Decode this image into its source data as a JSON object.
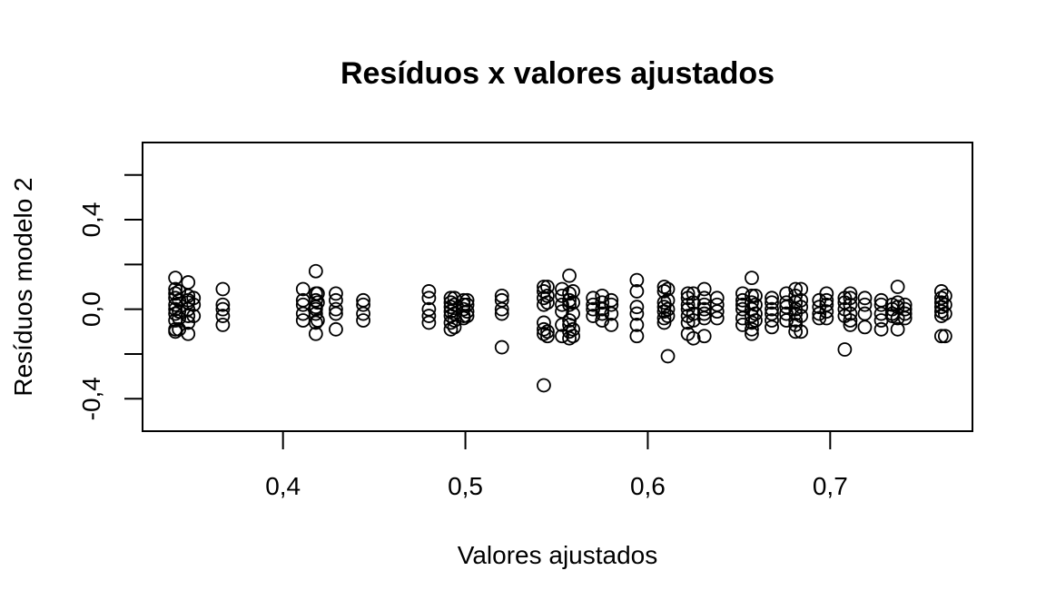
{
  "chart_data": {
    "type": "scatter",
    "title": "Resíduos x valores ajustados",
    "xlabel": "Valores ajustados",
    "ylabel": "Resíduos modelo 2",
    "xlim": [
      0.323,
      0.778
    ],
    "ylim": [
      -0.545,
      0.745
    ],
    "xticks": [
      {
        "value": 0.4,
        "label": "0,4"
      },
      {
        "value": 0.5,
        "label": "0,5"
      },
      {
        "value": 0.6,
        "label": "0,6"
      },
      {
        "value": 0.7,
        "label": "0,7"
      }
    ],
    "yticks": [
      {
        "value": -0.4,
        "label": "-0,4"
      },
      {
        "value": -0.2,
        "label": ""
      },
      {
        "value": 0.0,
        "label": "0,0"
      },
      {
        "value": 0.2,
        "label": ""
      },
      {
        "value": 0.4,
        "label": "0,4"
      },
      {
        "value": 0.6,
        "label": ""
      }
    ],
    "grid": false,
    "marker": "open-circle",
    "points": [
      [
        0.341,
        0.14
      ],
      [
        0.341,
        0.09
      ],
      [
        0.341,
        0.07
      ],
      [
        0.341,
        0.05
      ],
      [
        0.341,
        0.02
      ],
      [
        0.341,
        0.0
      ],
      [
        0.341,
        -0.02
      ],
      [
        0.341,
        -0.05
      ],
      [
        0.341,
        -0.09
      ],
      [
        0.341,
        -0.1
      ],
      [
        0.343,
        0.08
      ],
      [
        0.343,
        0.04
      ],
      [
        0.343,
        -0.01
      ],
      [
        0.343,
        -0.04
      ],
      [
        0.343,
        -0.09
      ],
      [
        0.348,
        0.12
      ],
      [
        0.348,
        0.06
      ],
      [
        0.348,
        0.04
      ],
      [
        0.348,
        0.03
      ],
      [
        0.348,
        0.0
      ],
      [
        0.348,
        -0.03
      ],
      [
        0.348,
        -0.06
      ],
      [
        0.348,
        -0.11
      ],
      [
        0.351,
        0.05
      ],
      [
        0.351,
        0.02
      ],
      [
        0.351,
        -0.03
      ],
      [
        0.367,
        0.09
      ],
      [
        0.367,
        0.02
      ],
      [
        0.367,
        0.0
      ],
      [
        0.367,
        -0.03
      ],
      [
        0.367,
        -0.07
      ],
      [
        0.411,
        0.09
      ],
      [
        0.411,
        0.04
      ],
      [
        0.411,
        0.02
      ],
      [
        0.411,
        -0.02
      ],
      [
        0.411,
        -0.05
      ],
      [
        0.418,
        0.17
      ],
      [
        0.418,
        0.07
      ],
      [
        0.418,
        0.04
      ],
      [
        0.418,
        0.01
      ],
      [
        0.418,
        0.0
      ],
      [
        0.418,
        -0.02
      ],
      [
        0.418,
        -0.06
      ],
      [
        0.418,
        -0.11
      ],
      [
        0.419,
        0.07
      ],
      [
        0.419,
        0.03
      ],
      [
        0.419,
        -0.05
      ],
      [
        0.429,
        0.07
      ],
      [
        0.429,
        0.04
      ],
      [
        0.429,
        0.0
      ],
      [
        0.429,
        -0.02
      ],
      [
        0.429,
        -0.09
      ],
      [
        0.444,
        0.04
      ],
      [
        0.444,
        0.02
      ],
      [
        0.444,
        -0.02
      ],
      [
        0.444,
        -0.05
      ],
      [
        0.48,
        0.08
      ],
      [
        0.48,
        0.05
      ],
      [
        0.48,
        0.0
      ],
      [
        0.48,
        -0.03
      ],
      [
        0.48,
        -0.06
      ],
      [
        0.492,
        0.05
      ],
      [
        0.492,
        0.03
      ],
      [
        0.492,
        0.01
      ],
      [
        0.492,
        -0.01
      ],
      [
        0.492,
        -0.03
      ],
      [
        0.492,
        -0.06
      ],
      [
        0.492,
        -0.09
      ],
      [
        0.494,
        0.05
      ],
      [
        0.494,
        0.02
      ],
      [
        0.494,
        -0.02
      ],
      [
        0.494,
        -0.05
      ],
      [
        0.494,
        -0.08
      ],
      [
        0.499,
        0.04
      ],
      [
        0.499,
        0.02
      ],
      [
        0.499,
        0.0
      ],
      [
        0.499,
        -0.03
      ],
      [
        0.499,
        -0.04
      ],
      [
        0.501,
        0.04
      ],
      [
        0.501,
        0.02
      ],
      [
        0.501,
        -0.01
      ],
      [
        0.501,
        -0.03
      ],
      [
        0.52,
        0.06
      ],
      [
        0.52,
        0.04
      ],
      [
        0.52,
        0.0
      ],
      [
        0.52,
        -0.02
      ],
      [
        0.52,
        -0.17
      ],
      [
        0.543,
        0.1
      ],
      [
        0.543,
        0.08
      ],
      [
        0.543,
        0.05
      ],
      [
        0.543,
        0.02
      ],
      [
        0.543,
        -0.06
      ],
      [
        0.543,
        -0.09
      ],
      [
        0.543,
        -0.11
      ],
      [
        0.543,
        -0.34
      ],
      [
        0.545,
        0.1
      ],
      [
        0.545,
        0.06
      ],
      [
        0.545,
        0.03
      ],
      [
        0.545,
        -0.1
      ],
      [
        0.545,
        -0.12
      ],
      [
        0.553,
        0.09
      ],
      [
        0.553,
        0.06
      ],
      [
        0.553,
        0.02
      ],
      [
        0.553,
        -0.01
      ],
      [
        0.553,
        -0.07
      ],
      [
        0.553,
        -0.12
      ],
      [
        0.557,
        0.15
      ],
      [
        0.557,
        0.07
      ],
      [
        0.557,
        0.04
      ],
      [
        0.557,
        0.02
      ],
      [
        0.557,
        -0.05
      ],
      [
        0.557,
        -0.07
      ],
      [
        0.557,
        -0.1
      ],
      [
        0.557,
        -0.13
      ],
      [
        0.559,
        0.08
      ],
      [
        0.559,
        0.03
      ],
      [
        0.559,
        -0.02
      ],
      [
        0.559,
        -0.09
      ],
      [
        0.559,
        -0.12
      ],
      [
        0.57,
        0.05
      ],
      [
        0.57,
        0.02
      ],
      [
        0.57,
        0.0
      ],
      [
        0.57,
        -0.03
      ],
      [
        0.575,
        0.06
      ],
      [
        0.575,
        0.03
      ],
      [
        0.575,
        0.0
      ],
      [
        0.575,
        -0.02
      ],
      [
        0.575,
        -0.05
      ],
      [
        0.58,
        0.04
      ],
      [
        0.58,
        0.02
      ],
      [
        0.58,
        -0.02
      ],
      [
        0.58,
        -0.07
      ],
      [
        0.594,
        0.13
      ],
      [
        0.594,
        0.08
      ],
      [
        0.594,
        0.01
      ],
      [
        0.594,
        -0.02
      ],
      [
        0.594,
        -0.07
      ],
      [
        0.594,
        -0.12
      ],
      [
        0.609,
        0.1
      ],
      [
        0.609,
        0.08
      ],
      [
        0.609,
        0.03
      ],
      [
        0.609,
        0.01
      ],
      [
        0.609,
        -0.01
      ],
      [
        0.609,
        -0.04
      ],
      [
        0.609,
        -0.06
      ],
      [
        0.611,
        0.09
      ],
      [
        0.611,
        0.04
      ],
      [
        0.611,
        0.0
      ],
      [
        0.611,
        -0.03
      ],
      [
        0.611,
        -0.21
      ],
      [
        0.622,
        0.07
      ],
      [
        0.622,
        0.05
      ],
      [
        0.622,
        0.02
      ],
      [
        0.622,
        0.0
      ],
      [
        0.622,
        -0.03
      ],
      [
        0.622,
        -0.06
      ],
      [
        0.622,
        -0.11
      ],
      [
        0.625,
        0.07
      ],
      [
        0.625,
        0.03
      ],
      [
        0.625,
        -0.02
      ],
      [
        0.625,
        -0.05
      ],
      [
        0.625,
        -0.13
      ],
      [
        0.631,
        0.09
      ],
      [
        0.631,
        0.05
      ],
      [
        0.631,
        0.02
      ],
      [
        0.631,
        0.0
      ],
      [
        0.631,
        -0.02
      ],
      [
        0.631,
        -0.04
      ],
      [
        0.631,
        -0.12
      ],
      [
        0.638,
        0.05
      ],
      [
        0.638,
        0.02
      ],
      [
        0.638,
        -0.01
      ],
      [
        0.638,
        -0.04
      ],
      [
        0.652,
        0.07
      ],
      [
        0.652,
        0.04
      ],
      [
        0.652,
        0.02
      ],
      [
        0.652,
        0.0
      ],
      [
        0.652,
        -0.04
      ],
      [
        0.652,
        -0.07
      ],
      [
        0.657,
        0.14
      ],
      [
        0.657,
        0.06
      ],
      [
        0.657,
        0.03
      ],
      [
        0.657,
        0.0
      ],
      [
        0.657,
        -0.03
      ],
      [
        0.657,
        -0.06
      ],
      [
        0.657,
        -0.09
      ],
      [
        0.657,
        -0.11
      ],
      [
        0.659,
        0.06
      ],
      [
        0.659,
        0.02
      ],
      [
        0.659,
        -0.02
      ],
      [
        0.659,
        -0.05
      ],
      [
        0.668,
        0.05
      ],
      [
        0.668,
        0.03
      ],
      [
        0.668,
        0.0
      ],
      [
        0.668,
        -0.02
      ],
      [
        0.668,
        -0.05
      ],
      [
        0.668,
        -0.08
      ],
      [
        0.676,
        0.07
      ],
      [
        0.676,
        0.03
      ],
      [
        0.676,
        0.01
      ],
      [
        0.676,
        -0.02
      ],
      [
        0.676,
        -0.05
      ],
      [
        0.681,
        0.09
      ],
      [
        0.681,
        0.06
      ],
      [
        0.681,
        0.03
      ],
      [
        0.681,
        0.0
      ],
      [
        0.681,
        -0.02
      ],
      [
        0.681,
        -0.05
      ],
      [
        0.681,
        -0.07
      ],
      [
        0.681,
        -0.1
      ],
      [
        0.684,
        0.09
      ],
      [
        0.684,
        0.04
      ],
      [
        0.684,
        0.01
      ],
      [
        0.684,
        -0.03
      ],
      [
        0.684,
        -0.1
      ],
      [
        0.694,
        0.04
      ],
      [
        0.694,
        0.01
      ],
      [
        0.694,
        -0.02
      ],
      [
        0.694,
        -0.04
      ],
      [
        0.698,
        0.07
      ],
      [
        0.698,
        0.04
      ],
      [
        0.698,
        0.02
      ],
      [
        0.698,
        -0.01
      ],
      [
        0.698,
        -0.04
      ],
      [
        0.708,
        0.05
      ],
      [
        0.708,
        0.03
      ],
      [
        0.708,
        0.0
      ],
      [
        0.708,
        -0.03
      ],
      [
        0.708,
        -0.18
      ],
      [
        0.711,
        0.07
      ],
      [
        0.711,
        0.05
      ],
      [
        0.711,
        0.02
      ],
      [
        0.711,
        -0.02
      ],
      [
        0.711,
        -0.05
      ],
      [
        0.711,
        -0.07
      ],
      [
        0.719,
        0.05
      ],
      [
        0.719,
        0.02
      ],
      [
        0.719,
        -0.02
      ],
      [
        0.719,
        -0.08
      ],
      [
        0.728,
        0.04
      ],
      [
        0.728,
        0.02
      ],
      [
        0.728,
        -0.02
      ],
      [
        0.728,
        -0.05
      ],
      [
        0.728,
        -0.09
      ],
      [
        0.734,
        0.02
      ],
      [
        0.734,
        0.0
      ],
      [
        0.734,
        -0.02
      ],
      [
        0.734,
        -0.03
      ],
      [
        0.737,
        0.1
      ],
      [
        0.737,
        0.03
      ],
      [
        0.737,
        0.01
      ],
      [
        0.737,
        -0.04
      ],
      [
        0.737,
        -0.09
      ],
      [
        0.741,
        0.02
      ],
      [
        0.741,
        0.0
      ],
      [
        0.741,
        -0.02
      ],
      [
        0.741,
        -0.04
      ],
      [
        0.761,
        0.08
      ],
      [
        0.761,
        0.05
      ],
      [
        0.761,
        0.03
      ],
      [
        0.761,
        0.01
      ],
      [
        0.761,
        -0.01
      ],
      [
        0.761,
        -0.03
      ],
      [
        0.761,
        -0.12
      ],
      [
        0.763,
        0.06
      ],
      [
        0.763,
        0.02
      ],
      [
        0.763,
        -0.02
      ],
      [
        0.763,
        -0.12
      ]
    ]
  }
}
